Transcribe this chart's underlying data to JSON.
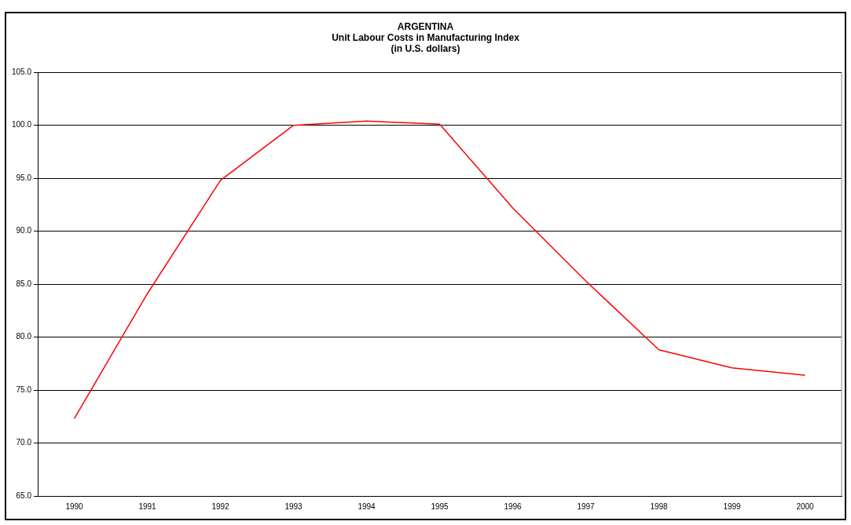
{
  "chart_data": {
    "type": "line",
    "title": [
      "ARGENTINA",
      "Unit Labour Costs in Manufacturing Index",
      "(in U.S. dollars)"
    ],
    "categories": [
      "1990",
      "1991",
      "1992",
      "1993",
      "1994",
      "1995",
      "1996",
      "1997",
      "1998",
      "1999",
      "2000"
    ],
    "series": [
      {
        "color": "#ff0000",
        "values": [
          72.3,
          84.1,
          94.8,
          100.0,
          100.4,
          100.1,
          92.2,
          85.3,
          78.8,
          77.1,
          76.4
        ]
      }
    ],
    "ylim": [
      65,
      105
    ],
    "yticks": [
      {
        "value": 65,
        "label": "65.0"
      },
      {
        "value": 70,
        "label": "70.0"
      },
      {
        "value": 75,
        "label": "75.0"
      },
      {
        "value": 80,
        "label": "80.0"
      },
      {
        "value": 85,
        "label": "85.0"
      },
      {
        "value": 90,
        "label": "90.0"
      },
      {
        "value": 95,
        "label": "95.0"
      },
      {
        "value": 100,
        "label": "100.0"
      },
      {
        "value": 105,
        "label": "105.0"
      }
    ],
    "grid": "y",
    "legend": false,
    "marker": "none",
    "line_style": "solid"
  }
}
